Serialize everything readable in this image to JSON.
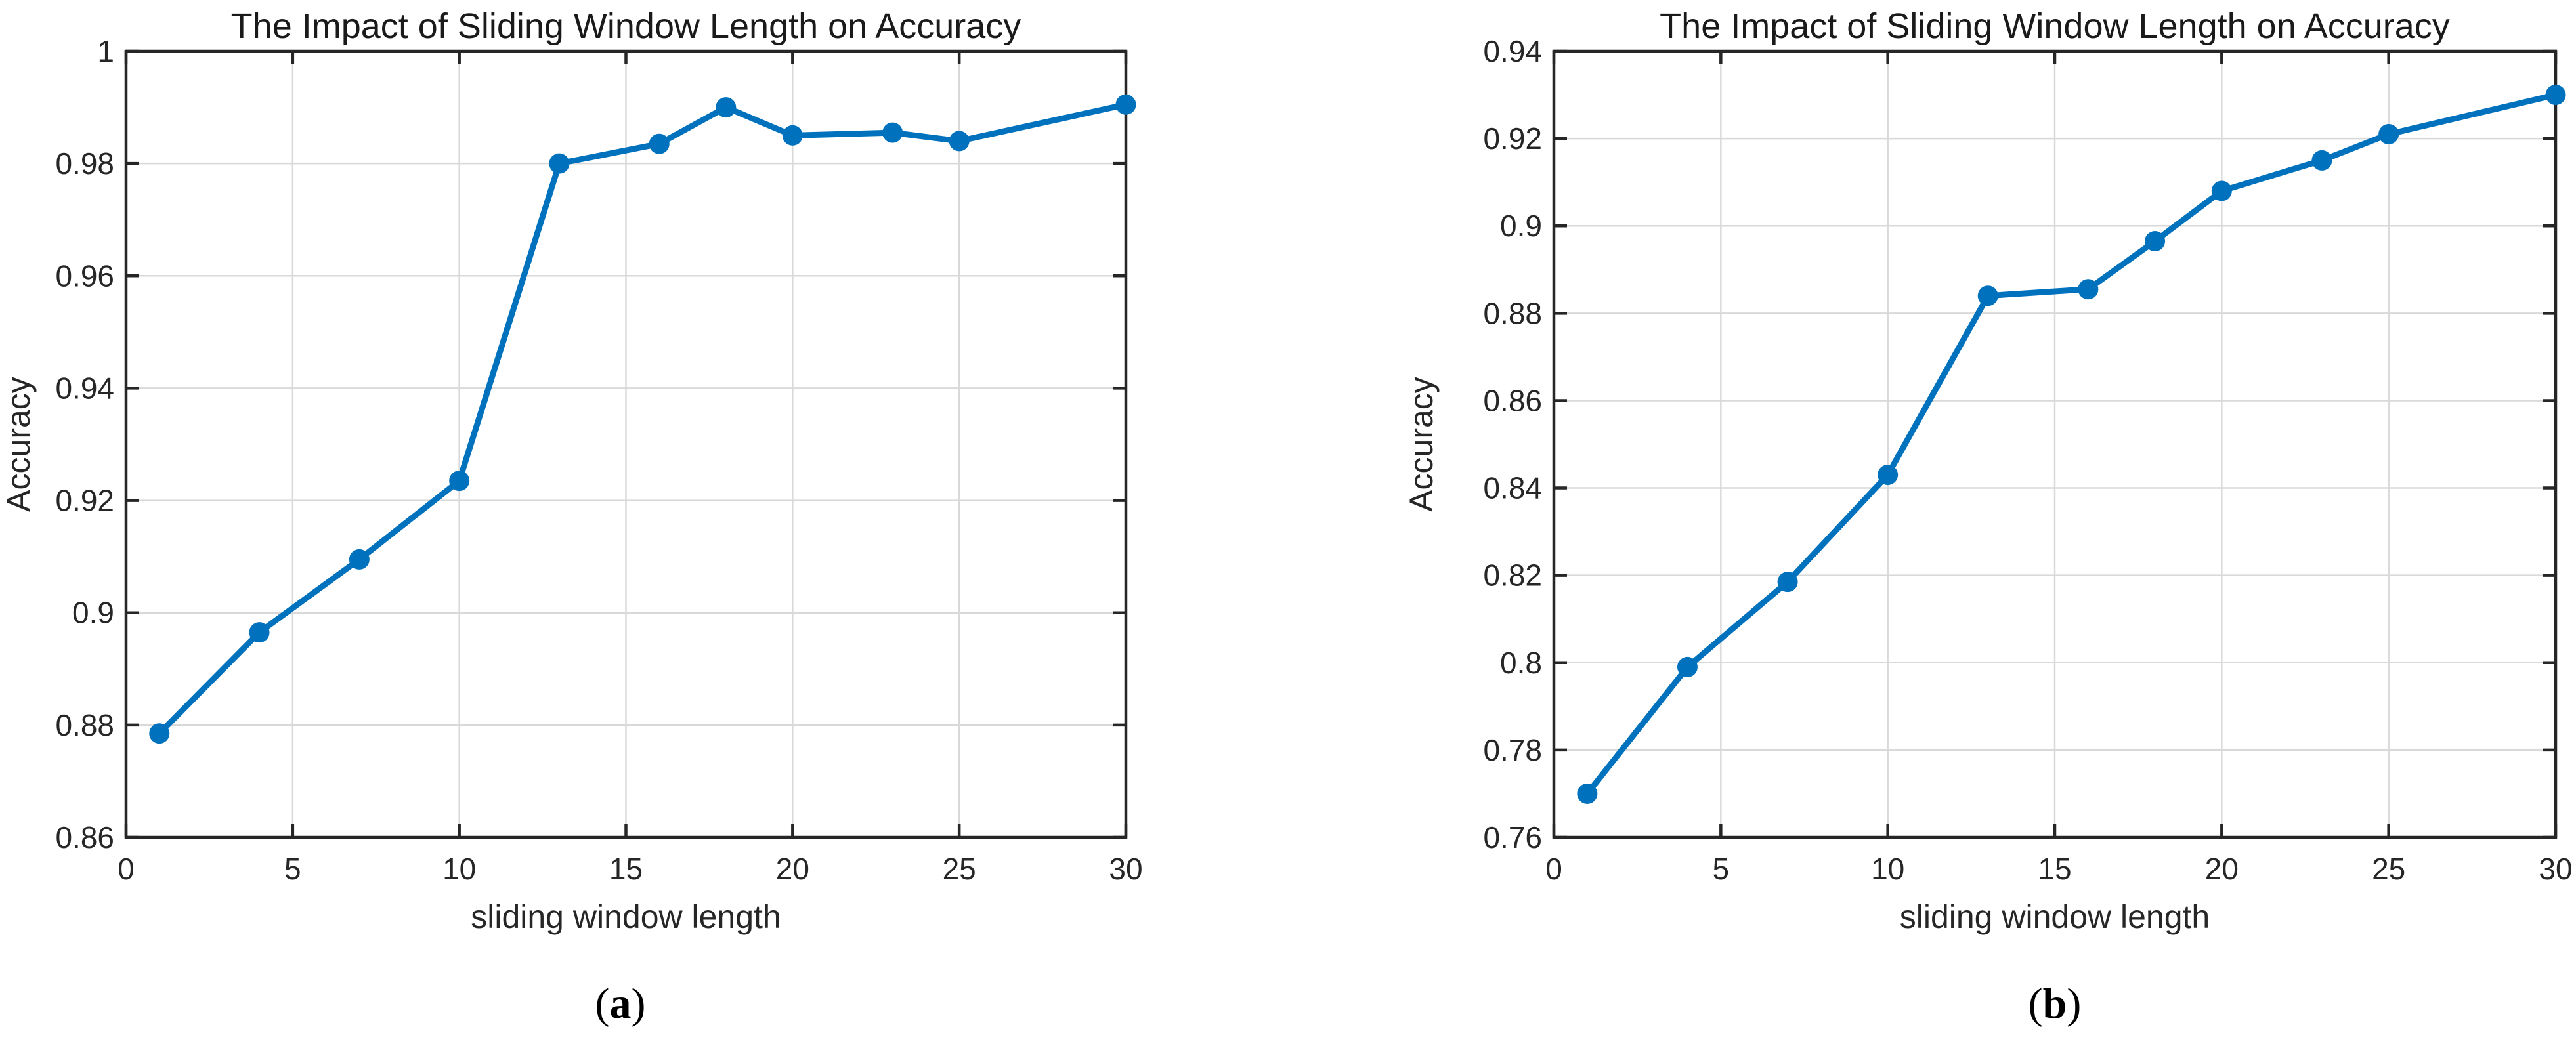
{
  "style": {
    "background": "#ffffff",
    "line_color": "#0072BD",
    "axis_color": "#262626",
    "grid_color": "#d9d9d9"
  },
  "chart_data": [
    {
      "type": "line",
      "panel": "a",
      "title": "The Impact of Sliding Window Length on Accuracy",
      "xlabel": "sliding window length",
      "ylabel": "Accuracy",
      "caption": {
        "prefix": "(",
        "letter": "a",
        "suffix": ")"
      },
      "xlim": [
        0,
        30
      ],
      "ylim": [
        0.86,
        1
      ],
      "xticks": [
        0,
        5,
        10,
        15,
        20,
        25,
        30
      ],
      "yticks": [
        0.86,
        0.88,
        0.9,
        0.92,
        0.94,
        0.96,
        0.98,
        1
      ],
      "grid": true,
      "legend": null,
      "x": [
        1,
        4,
        7,
        10,
        13,
        16,
        18,
        20,
        23,
        25,
        30
      ],
      "y": [
        0.8785,
        0.8965,
        0.9095,
        0.9235,
        0.98,
        0.9835,
        0.99,
        0.985,
        0.9855,
        0.984,
        0.9905
      ]
    },
    {
      "type": "line",
      "panel": "b",
      "title": "The Impact of Sliding Window Length on Accuracy",
      "xlabel": "sliding window length",
      "ylabel": "Accuracy",
      "caption": {
        "prefix": "(",
        "letter": "b",
        "suffix": ")"
      },
      "xlim": [
        0,
        30
      ],
      "ylim": [
        0.76,
        0.94
      ],
      "xticks": [
        0,
        5,
        10,
        15,
        20,
        25,
        30
      ],
      "yticks": [
        0.76,
        0.78,
        0.8,
        0.82,
        0.84,
        0.86,
        0.88,
        0.9,
        0.92,
        0.94
      ],
      "grid": true,
      "legend": null,
      "x": [
        1,
        4,
        7,
        10,
        13,
        16,
        18,
        20,
        23,
        25,
        30
      ],
      "y": [
        0.77,
        0.799,
        0.8185,
        0.843,
        0.884,
        0.8855,
        0.8965,
        0.908,
        0.915,
        0.921,
        0.93
      ]
    }
  ]
}
